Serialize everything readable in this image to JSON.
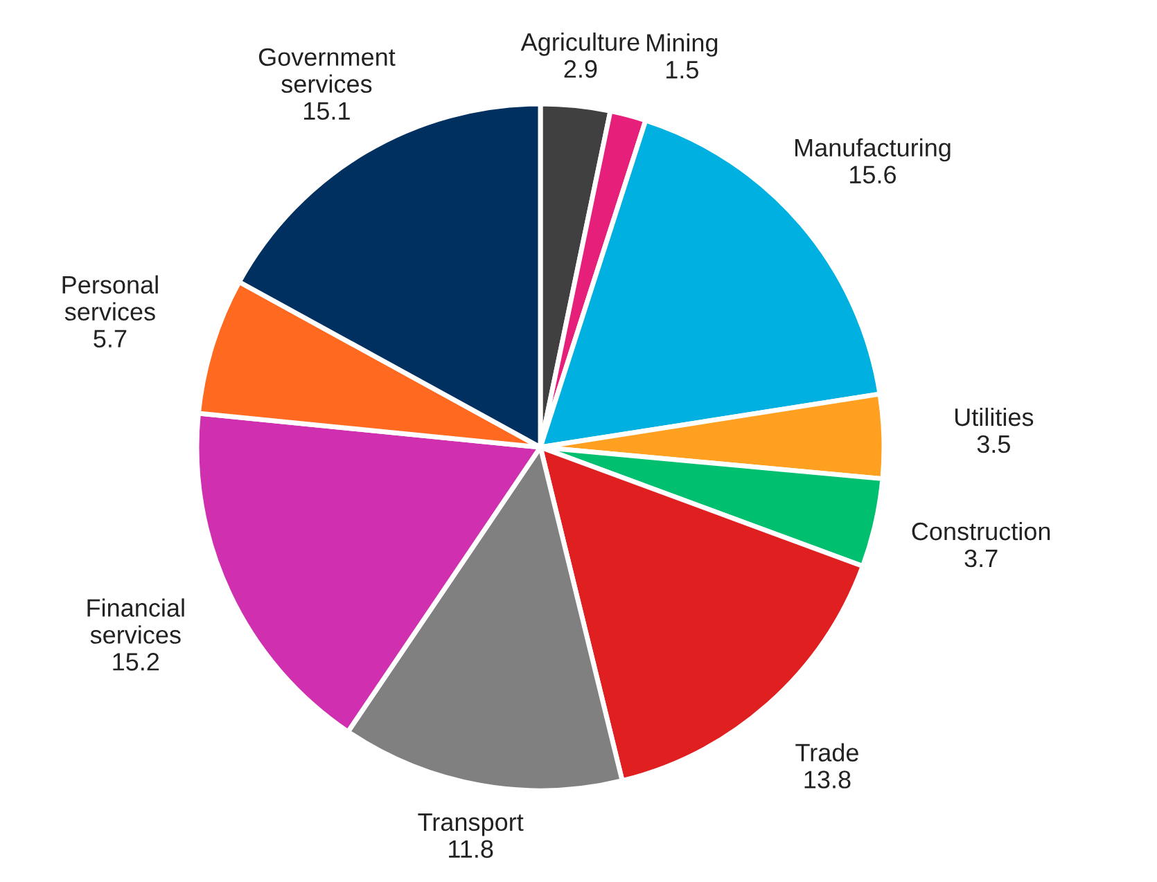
{
  "chart_data": {
    "type": "pie",
    "categories": [
      "Agriculture",
      "Mining",
      "Manufacturing",
      "Utilities",
      "Construction",
      "Trade",
      "Transport",
      "Financial\nservices",
      "Personal\nservices",
      "Government\nservices"
    ],
    "values": [
      2.9,
      1.5,
      15.6,
      3.5,
      3.7,
      13.8,
      11.8,
      15.2,
      5.7,
      15.1
    ],
    "colors": [
      "#404040",
      "#e6207a",
      "#00b0e0",
      "#ffa020",
      "#00c070",
      "#e02020",
      "#808080",
      "#d030b0",
      "#ff6a20",
      "#003060"
    ],
    "data_labels": true
  }
}
